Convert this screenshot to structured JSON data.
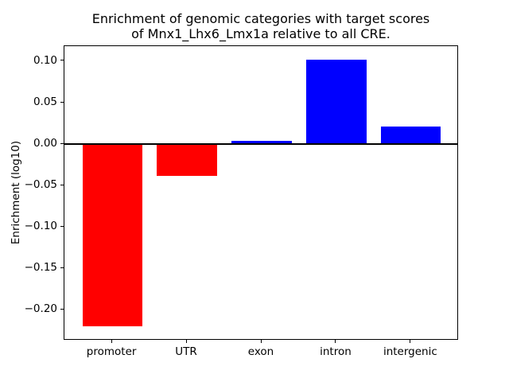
{
  "figure": {
    "title_line1": "Enrichment of genomic categories with target scores",
    "title_line2": "of Mnx1_Lhx6_Lmx1a relative to all CRE.",
    "background_color": "#ffffff"
  },
  "chart_data": {
    "type": "bar",
    "title": "Enrichment of genomic categories with target scores\nof Mnx1_Lhx6_Lmx1a relative to all CRE.",
    "xlabel": "",
    "ylabel": "Enrichment (log10)",
    "categories": [
      "promoter",
      "UTR",
      "exon",
      "intron",
      "intergenic"
    ],
    "values": [
      -0.22,
      -0.038,
      0.004,
      0.102,
      0.021
    ],
    "bar_colors": [
      "#ff0000",
      "#ff0000",
      "#0000ff",
      "#0000ff",
      "#0000ff"
    ],
    "positive_color": "#0000ff",
    "negative_color": "#ff0000",
    "yticks": [
      0.1,
      0.05,
      0.0,
      -0.05,
      -0.1,
      -0.15,
      -0.2
    ],
    "ytick_labels": [
      "0.10",
      "0.05",
      "0.00",
      "−0.05",
      "−0.10",
      "−0.15",
      "−0.20"
    ],
    "ylim": [
      -0.2372,
      0.1182
    ],
    "xlim": [
      -0.64,
      4.64
    ],
    "bar_width": 0.8,
    "grid": false,
    "legend_position": "none",
    "zero_line": true,
    "axis_color": "#000000"
  }
}
